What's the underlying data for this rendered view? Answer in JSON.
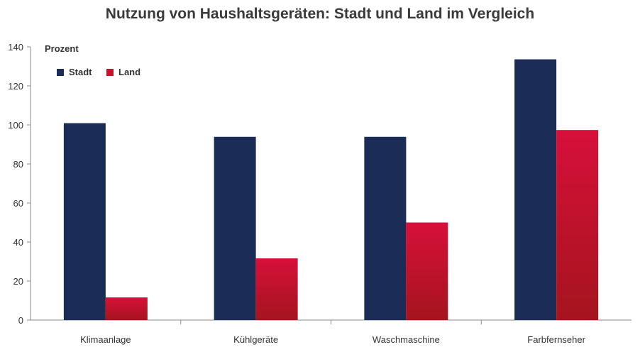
{
  "chart_data": {
    "type": "bar",
    "title": "Nutzung von Haushaltsgeräten: Stadt und Land im Vergleich",
    "ylabel": "Prozent",
    "xlabel": "",
    "categories": [
      "Klimaanlage",
      "Kühlgeräte",
      "Waschmaschine",
      "Farbfernseher"
    ],
    "series": [
      {
        "name": "Stadt",
        "values": [
          100.9,
          93.9,
          93.9,
          133.6
        ],
        "color": "#1b2d57"
      },
      {
        "name": "Land",
        "values": [
          11.6,
          31.6,
          50.0,
          97.4
        ],
        "color": "#c3142d"
      }
    ],
    "ylim": [
      0,
      140
    ],
    "yticks": [
      0,
      20,
      40,
      60,
      80,
      100,
      120,
      140
    ],
    "grid": false,
    "legend": "top-left"
  }
}
